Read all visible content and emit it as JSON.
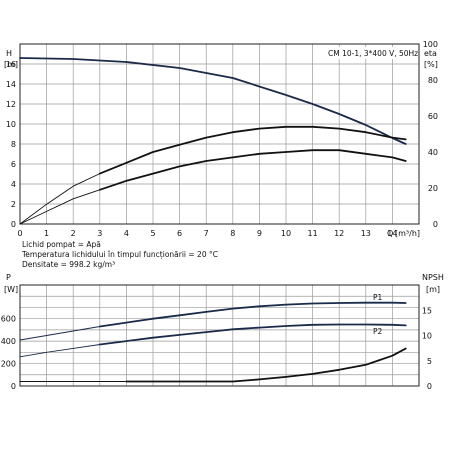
{
  "chart_data": [
    {
      "type": "line",
      "title": "CM 10-1, 3*400 V, 50Hz",
      "y_left_label": "H",
      "y_left_unit": "[m]",
      "y_right_label": "eta",
      "y_right_unit": "[%]",
      "x_label": "Q",
      "x_unit": "[m³/h]",
      "xlim": [
        0,
        15
      ],
      "ylim_left": [
        0,
        18
      ],
      "ylim_right": [
        0,
        100
      ],
      "x_ticks": [
        "0",
        "1",
        "2",
        "3",
        "4",
        "5",
        "6",
        "7",
        "8",
        "9",
        "10",
        "11",
        "12",
        "13",
        "14"
      ],
      "y_left_ticks": [
        "0",
        "2",
        "4",
        "6",
        "8",
        "10",
        "12",
        "14",
        "16"
      ],
      "y_right_ticks": [
        "0",
        "20",
        "40",
        "60",
        "80",
        "100"
      ],
      "grid": true,
      "series": [
        {
          "axis": "left",
          "x": [
            0,
            2,
            4,
            6,
            8,
            10,
            11,
            12,
            13,
            14,
            14.5
          ],
          "y": [
            16.6,
            16.5,
            16.2,
            15.6,
            14.6,
            12.9,
            12.0,
            11.0,
            9.9,
            8.6,
            8.0
          ]
        },
        {
          "axis": "right",
          "x": [
            0,
            1,
            2,
            3,
            4,
            5,
            6,
            7,
            8,
            9,
            10,
            11,
            12,
            13,
            14,
            14.5
          ],
          "y": [
            0,
            11,
            21,
            28,
            34,
            40,
            44,
            48,
            51,
            53,
            54,
            54,
            53,
            51,
            48,
            47
          ]
        },
        {
          "axis": "right",
          "x": [
            0,
            1,
            2,
            3,
            4,
            5,
            6,
            7,
            8,
            9,
            10,
            11,
            12,
            13,
            14,
            14.5
          ],
          "y": [
            0,
            7,
            14,
            19,
            24,
            28,
            32,
            35,
            37,
            39,
            40,
            41,
            41,
            39,
            37,
            35
          ]
        }
      ]
    },
    {
      "type": "line",
      "y_left_label": "P",
      "y_left_unit": "[W]",
      "y_right_label": "NPSH",
      "y_right_unit": "[m]",
      "xlim": [
        0,
        15
      ],
      "ylim_left": [
        0,
        900
      ],
      "ylim_right": [
        0,
        20
      ],
      "y_left_ticks": [
        "0",
        "200",
        "400",
        "600"
      ],
      "y_right_ticks": [
        "0",
        "5",
        "10",
        "15"
      ],
      "grid": true,
      "series": [
        {
          "name": "P1",
          "axis": "left",
          "x": [
            0,
            1,
            2,
            3,
            4,
            5,
            6,
            7,
            8,
            9,
            10,
            11,
            12,
            13,
            14,
            14.5
          ],
          "y": [
            410,
            450,
            490,
            530,
            565,
            600,
            630,
            660,
            690,
            710,
            725,
            735,
            740,
            742,
            742,
            740
          ]
        },
        {
          "name": "P2",
          "axis": "left",
          "x": [
            0,
            1,
            2,
            3,
            4,
            5,
            6,
            7,
            8,
            9,
            10,
            11,
            12,
            13,
            14,
            14.5
          ],
          "y": [
            260,
            300,
            335,
            370,
            400,
            430,
            455,
            480,
            505,
            520,
            535,
            545,
            548,
            548,
            545,
            540
          ]
        },
        {
          "axis": "right",
          "x": [
            0,
            2,
            4,
            6,
            8,
            9,
            10,
            11,
            12,
            13,
            14,
            14.5
          ],
          "y": [
            0.9,
            0.9,
            0.9,
            0.9,
            0.9,
            1.3,
            1.8,
            2.4,
            3.2,
            4.2,
            6.0,
            7.4
          ]
        }
      ]
    }
  ],
  "fluid_info": [
    "Lichid pompat = Apă",
    "Temperatura lichidului în timpul funcționării = 20 °C",
    "Densitate = 998.2 kg/m³"
  ]
}
